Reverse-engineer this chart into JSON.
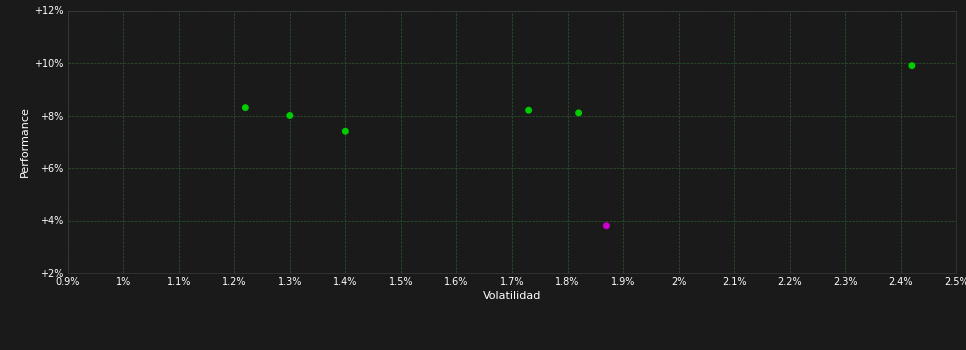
{
  "xlabel": "Volatilidad",
  "ylabel": "Performance",
  "background_color": "#1a1a1a",
  "grid_color": "#2d5a2d",
  "spine_color": "#3a3a3a",
  "tick_color": "#ffffff",
  "label_color": "#ffffff",
  "xlim": [
    0.009,
    0.025
  ],
  "ylim": [
    0.02,
    0.12
  ],
  "xticks": [
    0.009,
    0.01,
    0.011,
    0.012,
    0.013,
    0.014,
    0.015,
    0.016,
    0.017,
    0.018,
    0.019,
    0.02,
    0.021,
    0.022,
    0.023,
    0.024,
    0.025
  ],
  "yticks": [
    0.02,
    0.04,
    0.06,
    0.08,
    0.1,
    0.12
  ],
  "xtick_labels": [
    "0.9%",
    "1%",
    "1.1%",
    "1.2%",
    "1.3%",
    "1.4%",
    "1.5%",
    "1.6%",
    "1.7%",
    "1.8%",
    "1.9%",
    "2%",
    "2.1%",
    "2.2%",
    "2.3%",
    "2.4%",
    "2.5%"
  ],
  "ytick_labels": [
    "+2%",
    "+4%",
    "+6%",
    "+8%",
    "+10%",
    "+12%"
  ],
  "green_points": [
    [
      0.0122,
      0.083
    ],
    [
      0.013,
      0.08
    ],
    [
      0.014,
      0.074
    ],
    [
      0.0173,
      0.082
    ],
    [
      0.0182,
      0.081
    ],
    [
      0.0242,
      0.099
    ]
  ],
  "magenta_points": [
    [
      0.0187,
      0.038
    ]
  ],
  "green_color": "#00cc00",
  "magenta_color": "#cc00cc",
  "point_size": 25
}
